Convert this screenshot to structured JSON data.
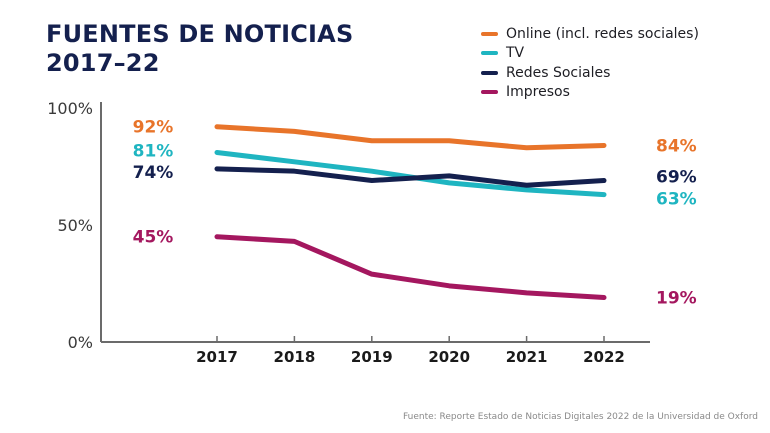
{
  "title": {
    "line1": "FUENTES DE NOTICIAS",
    "line2": "2017–22"
  },
  "source": "Fuente: Reporte Estado de Noticias Digitales 2022 de la Universidad de Oxford",
  "chart_data": {
    "type": "line",
    "title": "FUENTES DE NOTICIAS 2017–22",
    "xlabel": "",
    "ylabel": "",
    "x": [
      "2017",
      "2018",
      "2019",
      "2020",
      "2021",
      "2022"
    ],
    "ylim": [
      0,
      100
    ],
    "yticks": [
      {
        "value": 100,
        "label": "100%"
      },
      {
        "value": 50,
        "label": "50%"
      },
      {
        "value": 0,
        "label": "0%"
      }
    ],
    "grid": false,
    "legend_position": "top-right",
    "series": [
      {
        "name": "Online (incl. redes sociales)",
        "color": "#e8742a",
        "values": [
          92,
          90,
          86,
          86,
          83,
          84
        ],
        "start_label": "92%",
        "end_label": "84%"
      },
      {
        "name": "TV",
        "color": "#1fb5c1",
        "values": [
          81,
          77,
          73,
          68,
          65,
          63
        ],
        "start_label": "81%",
        "end_label": "63%"
      },
      {
        "name": "Redes Sociales",
        "color": "#14204e",
        "values": [
          74,
          73,
          69,
          71,
          67,
          69
        ],
        "start_label": "74%",
        "end_label": "69%"
      },
      {
        "name": "Impresos",
        "color": "#a4175f",
        "values": [
          45,
          43,
          29,
          24,
          21,
          19
        ],
        "start_label": "45%",
        "end_label": "19%"
      }
    ]
  }
}
